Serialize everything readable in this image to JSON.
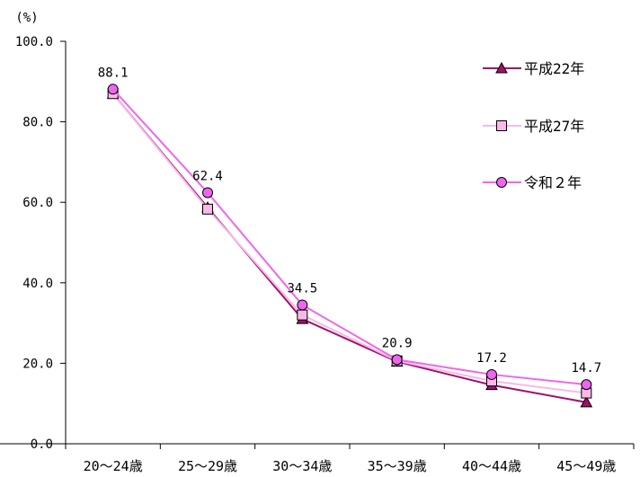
{
  "chart_data": {
    "type": "line",
    "unit_label": "(%)",
    "categories": [
      "20～24歳",
      "25～29歳",
      "30～34歳",
      "35～39歳",
      "40～44歳",
      "45～49歳"
    ],
    "ylim": [
      0,
      100
    ],
    "yticks": [
      "0.0",
      "20.0",
      "40.0",
      "60.0",
      "80.0",
      "100.0"
    ],
    "grid": false,
    "legend_position": "top-right",
    "series": [
      {
        "name": "平成22年",
        "values": [
          87.0,
          58.7,
          31.0,
          20.4,
          14.6,
          10.3
        ],
        "color": "#a0106e",
        "marker": "triangle"
      },
      {
        "name": "平成27年",
        "values": [
          87.0,
          58.3,
          32.0,
          20.6,
          15.6,
          12.6
        ],
        "color": "#f9b8e8",
        "marker": "square"
      },
      {
        "name": "令和２年",
        "values": [
          88.1,
          62.4,
          34.5,
          20.9,
          17.2,
          14.7
        ],
        "color": "#ee66ee",
        "marker": "circle"
      }
    ],
    "data_labels": [
      "88.1",
      "62.4",
      "34.5",
      "20.9",
      "17.2",
      "14.7"
    ]
  }
}
